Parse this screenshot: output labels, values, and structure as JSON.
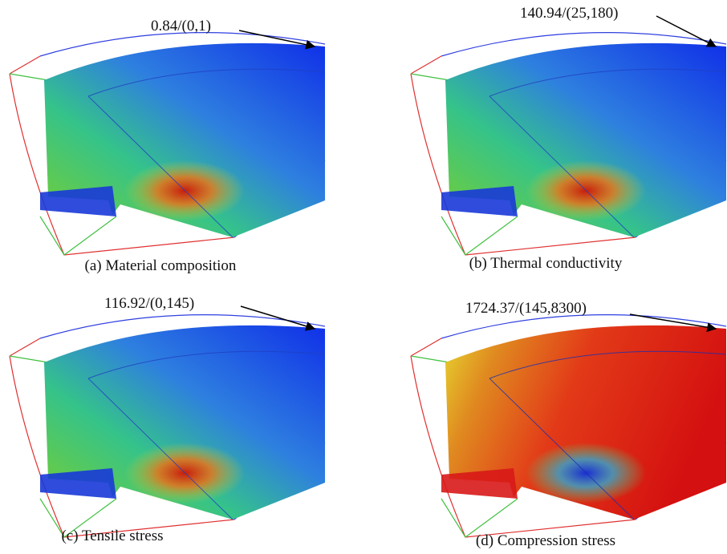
{
  "panels": [
    {
      "annotation": "0.84/(0,1)",
      "caption": "(a) Material composition"
    },
    {
      "annotation": "140.94/(25,180)",
      "caption": "(b) Thermal conductivity"
    },
    {
      "annotation": "116.92/(0,145)",
      "caption": "(c) Tensile stress"
    },
    {
      "annotation": "1724.37/(145,8300)",
      "caption": "(d) Compression stress"
    }
  ]
}
